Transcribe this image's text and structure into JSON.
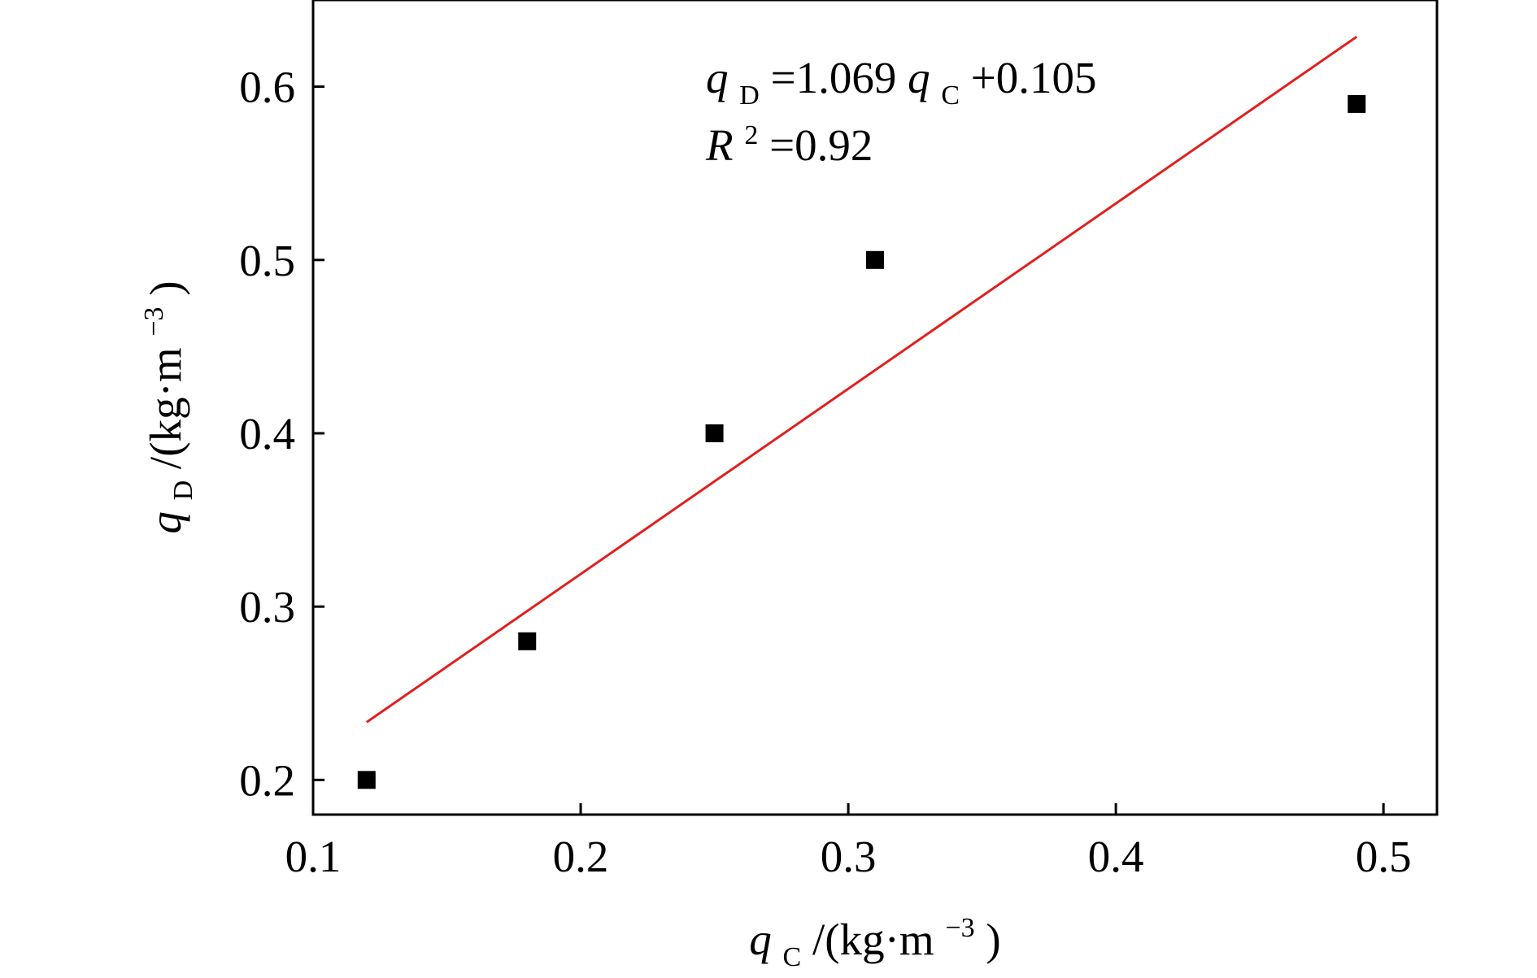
{
  "chart_data": {
    "type": "scatter",
    "title": "",
    "xlabel": {
      "var": "q",
      "sub": "C",
      "unit_open": "/(kg·m",
      "exponent": "−3",
      "unit_close": ")"
    },
    "ylabel": {
      "var": "q",
      "sub": "D",
      "unit_open": "/(kg·m",
      "exponent": "−3",
      "unit_close": ")"
    },
    "xlim": [
      0.1,
      0.52
    ],
    "ylim": [
      0.18,
      0.65
    ],
    "x_ticks": [
      "0.1",
      "0.2",
      "0.3",
      "0.4",
      "0.5"
    ],
    "x_tick_values": [
      0.1,
      0.2,
      0.3,
      0.4,
      0.5
    ],
    "y_ticks": [
      "0.2",
      "0.3",
      "0.4",
      "0.5",
      "0.6"
    ],
    "y_tick_values": [
      0.2,
      0.3,
      0.4,
      0.5,
      0.6
    ],
    "grid": false,
    "series": [
      {
        "marker": "square",
        "color": "#000000",
        "points": [
          {
            "x": 0.12,
            "y": 0.2
          },
          {
            "x": 0.18,
            "y": 0.28
          },
          {
            "x": 0.25,
            "y": 0.4
          },
          {
            "x": 0.31,
            "y": 0.5
          },
          {
            "x": 0.49,
            "y": 0.59
          }
        ]
      }
    ],
    "fit_line": {
      "color": "#e0201e",
      "slope": 1.069,
      "intercept": 0.105,
      "x_range": [
        0.12,
        0.49
      ]
    },
    "annotations": {
      "equation": {
        "lhs_var": "q",
        "lhs_sub": "D",
        "middle": "=1.069",
        "rhs_var": "q",
        "rhs_sub": "C",
        "tail": "+0.105"
      },
      "r2": {
        "var": "R",
        "sup": "2",
        "tail": "=0.92"
      }
    }
  }
}
